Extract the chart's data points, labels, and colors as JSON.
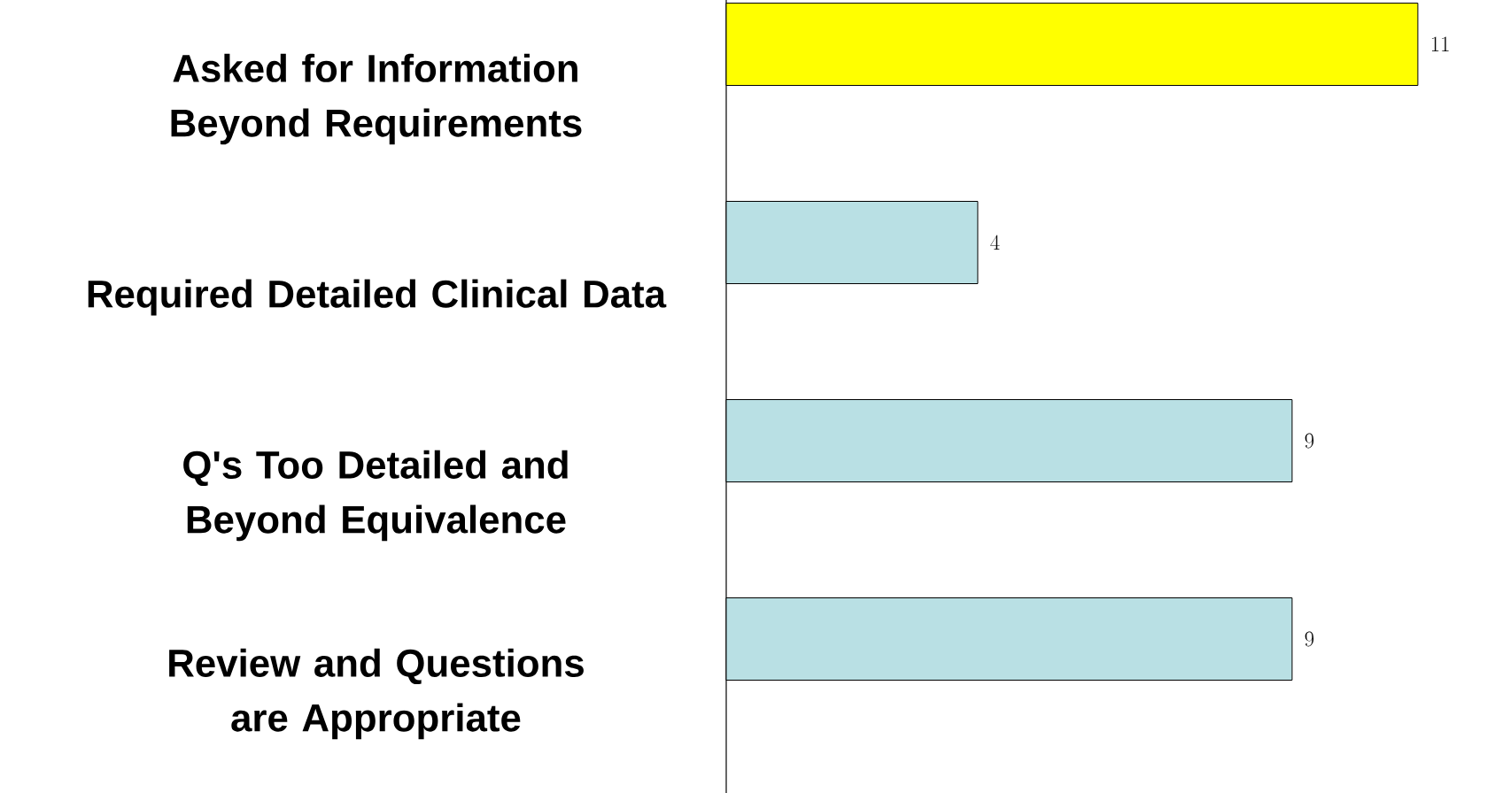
{
  "chart_data": {
    "type": "bar",
    "orientation": "horizontal",
    "categories": [
      "Asked for Information Beyond Requirements",
      "Required Detailed Clinical Data",
      "Q's Too Detailed and Beyond Equivalence",
      "Review and Questions are Appropriate"
    ],
    "values": [
      11,
      4,
      9,
      9
    ],
    "colors": [
      "#ffff00",
      "#b9e0e4",
      "#b9e0e4",
      "#b9e0e4"
    ],
    "data_labels": true
  }
}
